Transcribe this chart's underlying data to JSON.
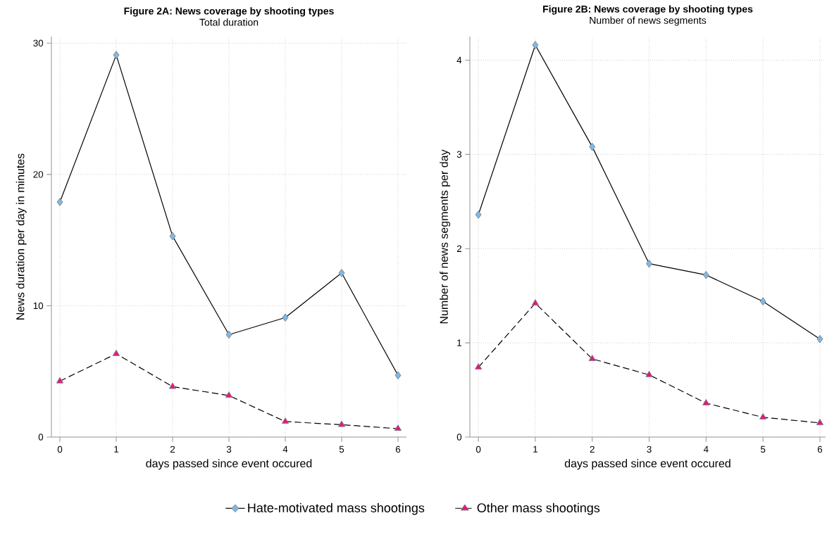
{
  "chart_data": [
    {
      "type": "line",
      "title": "Figure 2A: News coverage by shooting types",
      "subtitle": "Total duration",
      "xlabel": "days passed since event occured",
      "ylabel": "News duration per day in minutes",
      "x": [
        0,
        1,
        2,
        3,
        4,
        5,
        6
      ],
      "series": [
        {
          "name": "Hate-motivated mass shootings",
          "color": "#7db9e8",
          "marker": "diamond",
          "line_style": "solid",
          "values": [
            17.9,
            29.1,
            15.3,
            7.8,
            9.1,
            12.5,
            4.7
          ]
        },
        {
          "name": "Other mass shootings",
          "color": "#e8157f",
          "marker": "triangle",
          "line_style": "dashed",
          "values": [
            4.26,
            6.34,
            3.84,
            3.16,
            1.18,
            0.94,
            0.64
          ]
        }
      ],
      "xlim": [
        -0.15,
        6.15
      ],
      "ylim": [
        0,
        30.5
      ],
      "xticks": [
        0,
        1,
        2,
        3,
        4,
        5,
        6
      ],
      "yticks": [
        0,
        10,
        20,
        30
      ],
      "grid": true,
      "legend": "bottom"
    },
    {
      "type": "line",
      "title": "Figure 2B: News coverage by shooting types",
      "subtitle": "Number of news segments",
      "xlabel": "days passed since event occured",
      "ylabel": "Number of news segments per day",
      "x": [
        0,
        1,
        2,
        3,
        4,
        5,
        6
      ],
      "series": [
        {
          "color": "#7db9e8",
          "marker": "diamond",
          "line_style": "solid",
          "values": [
            2.36,
            4.16,
            3.08,
            1.84,
            1.72,
            1.44,
            1.04
          ]
        },
        {
          "color": "#e8157f",
          "marker": "triangle",
          "line_style": "dashed",
          "values": [
            0.74,
            1.42,
            0.83,
            0.66,
            0.36,
            0.21,
            0.15
          ]
        }
      ],
      "xlim": [
        -0.15,
        6.1
      ],
      "ylim": [
        0,
        4.25
      ],
      "xticks": [
        0,
        1,
        2,
        3,
        4,
        5,
        6
      ],
      "yticks": [
        0,
        1,
        2,
        3,
        4
      ],
      "grid": true
    }
  ]
}
